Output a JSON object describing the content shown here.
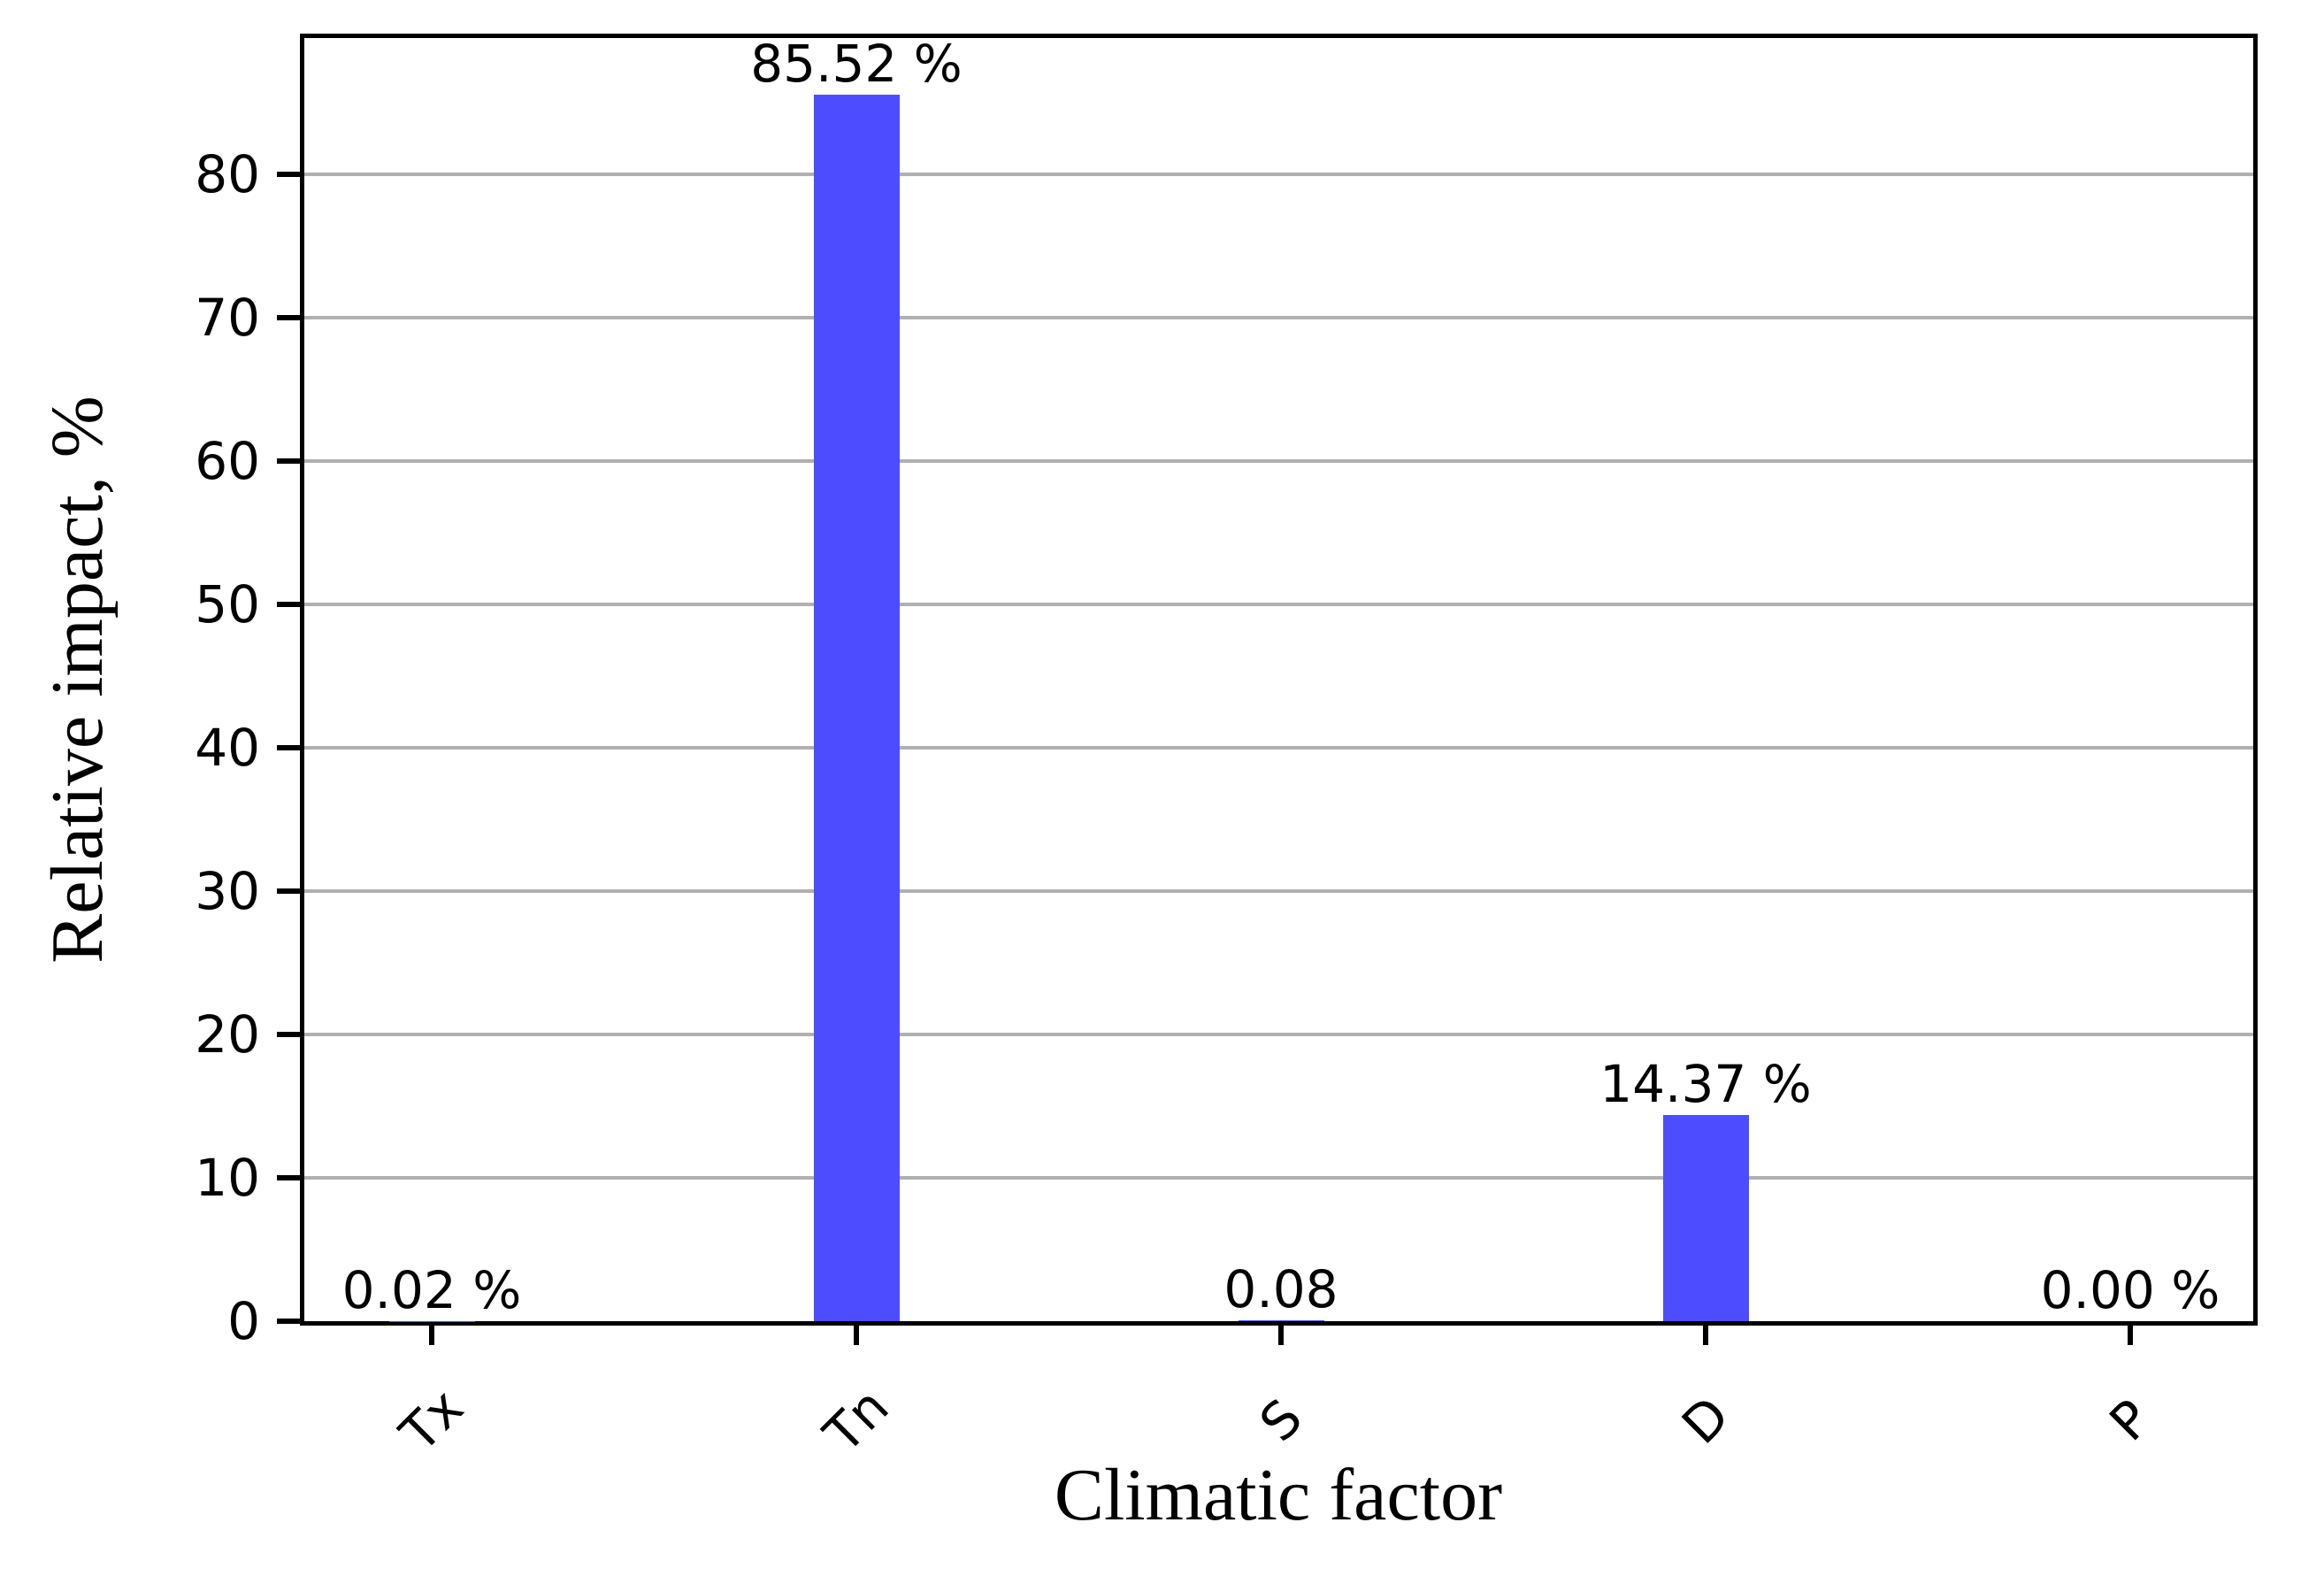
{
  "chart_data": {
    "type": "bar",
    "title": "",
    "xlabel": "Climatic factor",
    "ylabel": "Relative impact, %",
    "categories": [
      "Tx",
      "Tn",
      "S",
      "D",
      "P"
    ],
    "values": [
      0.02,
      85.52,
      0.08,
      14.37,
      0.0
    ],
    "bar_value_labels": [
      "0.02 %",
      "85.52 %",
      "0.08",
      "14.37 %",
      "0.00 %"
    ],
    "ylim": [
      0,
      89.5
    ],
    "yticks": [
      "0",
      "10",
      "20",
      "30",
      "40",
      "50",
      "60",
      "70",
      "80"
    ],
    "ytick_values": [
      0,
      10,
      20,
      30,
      40,
      50,
      60,
      70,
      80
    ],
    "grid": "horizontal",
    "legend": "none",
    "xtick_rotation_deg": 45,
    "colors": {
      "bar": "#4d4dff",
      "grid": "#b0b0b0",
      "axis": "#000000",
      "background": "#ffffff"
    }
  }
}
